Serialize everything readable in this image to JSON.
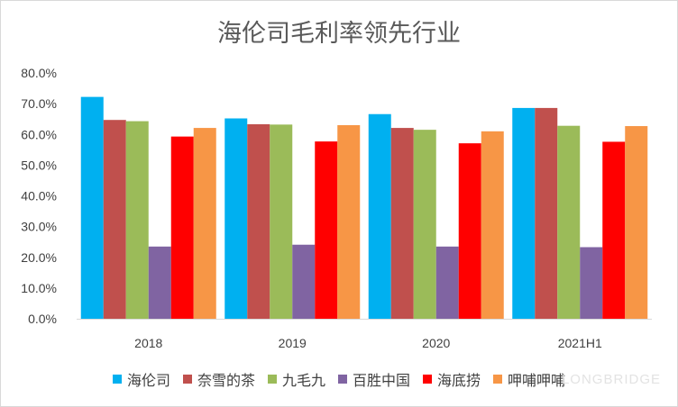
{
  "chart_data": {
    "type": "bar",
    "title": "海伦司毛利率领先行业",
    "xlabel": "",
    "ylabel": "",
    "ylim": [
      0,
      80
    ],
    "yticks": [
      "0.0%",
      "10.0%",
      "20.0%",
      "30.0%",
      "40.0%",
      "50.0%",
      "60.0%",
      "70.0%",
      "80.0%"
    ],
    "categories": [
      "2018",
      "2019",
      "2020",
      "2021H1"
    ],
    "legend_position": "bottom",
    "grid": false,
    "series": [
      {
        "name": "海伦司",
        "color": "#00b0f0",
        "values": [
          72.2,
          65.2,
          66.6,
          68.6
        ]
      },
      {
        "name": "奈雪的茶",
        "color": "#c0504d",
        "values": [
          64.7,
          63.3,
          62.1,
          68.6
        ]
      },
      {
        "name": "九毛九",
        "color": "#9bbb59",
        "values": [
          64.3,
          63.2,
          61.5,
          62.8
        ]
      },
      {
        "name": "百胜中国",
        "color": "#8064a2",
        "values": [
          23.5,
          24.1,
          23.5,
          23.3
        ]
      },
      {
        "name": "海底捞",
        "color": "#ff0000",
        "values": [
          59.3,
          57.7,
          57.1,
          57.6
        ]
      },
      {
        "name": "呷哺呷哺",
        "color": "#f79646",
        "values": [
          62.1,
          63.0,
          61.0,
          62.7
        ]
      }
    ]
  },
  "watermark": "LONGBRIDGE"
}
